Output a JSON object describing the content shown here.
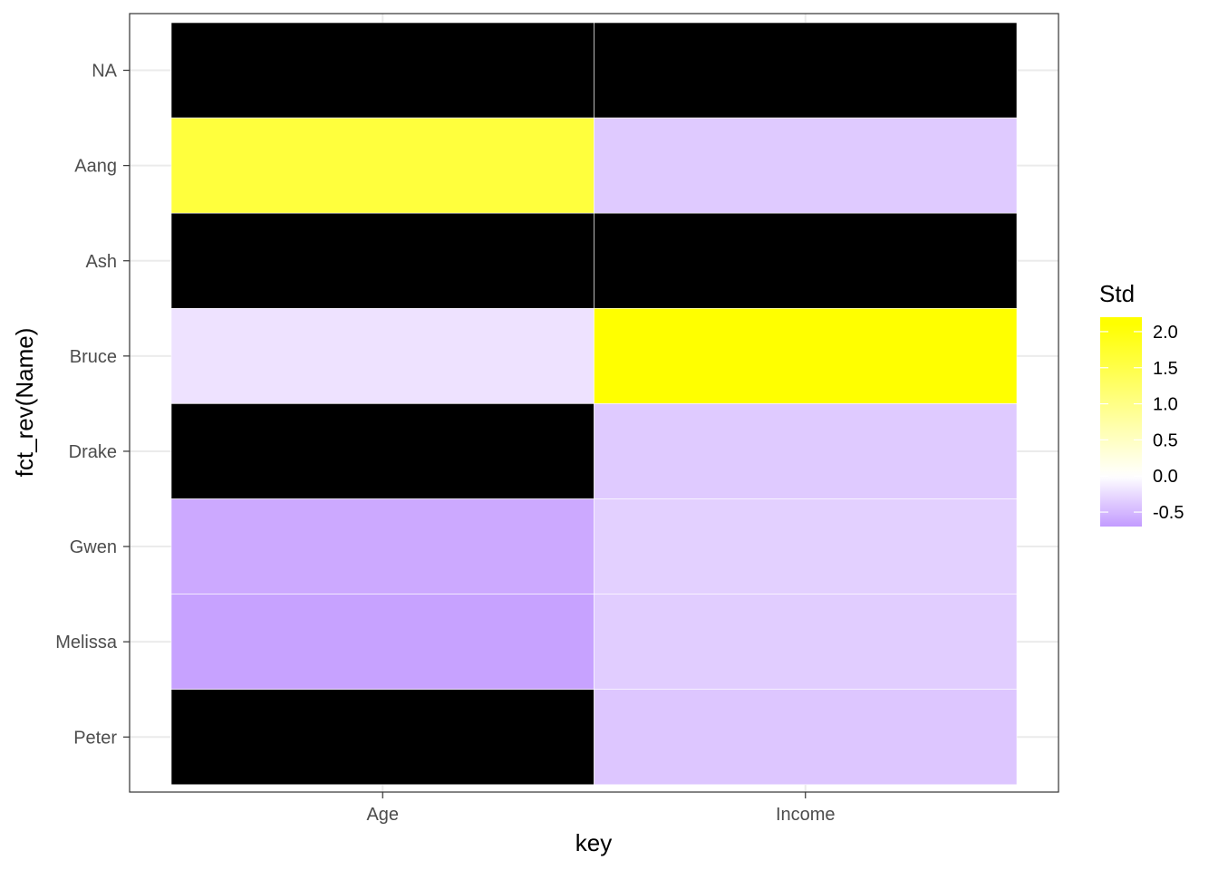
{
  "chart_data": {
    "type": "heatmap",
    "title": "",
    "xlabel": "key",
    "ylabel": "fct_rev(Name)",
    "x_categories": [
      "Age",
      "Income"
    ],
    "y_categories": [
      "NA",
      "Aang",
      "Ash",
      "Bruce",
      "Drake",
      "Gwen",
      "Melissa",
      "Peter"
    ],
    "values": [
      [
        null,
        null
      ],
      [
        1.6,
        -0.37
      ],
      [
        null,
        null
      ],
      [
        -0.2,
        2.1
      ],
      [
        null,
        -0.37
      ],
      [
        -0.6,
        -0.33
      ],
      [
        -0.65,
        -0.35
      ],
      [
        null,
        -0.4
      ]
    ],
    "na_color": "#000000",
    "legend": {
      "title": "Std",
      "position": "right",
      "range": [
        -0.7,
        2.2
      ],
      "ticks": [
        2.0,
        1.5,
        1.0,
        0.5,
        0.0,
        -0.5
      ],
      "tick_labels": [
        "2.0",
        "1.5",
        "1.0",
        "0.5",
        "0.0",
        "-0.5"
      ]
    },
    "scale": {
      "low": -0.7,
      "mid": 0.0,
      "high": 2.1,
      "low_color": "#c39bff",
      "mid_color": "#ffffff",
      "high_color": "#ffff00"
    },
    "grid": true
  }
}
